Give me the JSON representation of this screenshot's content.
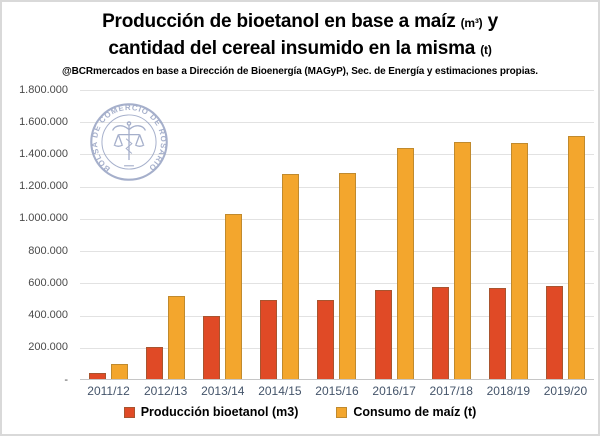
{
  "title": {
    "line1": {
      "main": "Producción de bioetanol en base a maíz ",
      "small": "(m³)",
      "tail": " y"
    },
    "line2": {
      "main": "cantidad del cereal insumido en la misma ",
      "small": "(t)"
    },
    "subtitle": "@BCRmercados en base a Dirección de Bioenergía (MAGyP), Sec. de Energía y estimaciones propias."
  },
  "watermark": {
    "ring_text": "BOLSA DE COMERCIO DE ROSARIO",
    "color": "#96a2c2"
  },
  "chart_data": {
    "type": "bar",
    "categories": [
      "2011/12",
      "2012/13",
      "2013/14",
      "2014/15",
      "2015/16",
      "2016/17",
      "2017/18",
      "2018/19",
      "2019/20"
    ],
    "series": [
      {
        "name": "Producción bioetanol (m3)",
        "id": "produccion-bioetanol",
        "color": "#e04a26",
        "border_color": "#a8542f",
        "values": [
          45000,
          205000,
          400000,
          495000,
          495000,
          560000,
          575000,
          570000,
          585000
        ]
      },
      {
        "name": "Consumo de maíz (t)",
        "id": "consumo-maiz",
        "color": "#f3a62d",
        "border_color": "#c08a2e",
        "values": [
          100000,
          520000,
          1030000,
          1280000,
          1285000,
          1440000,
          1475000,
          1470000,
          1515000
        ]
      }
    ],
    "ylim": [
      0,
      1800000
    ],
    "ytick_step": 200000,
    "yticks": [
      {
        "value": 0,
        "label": "-"
      },
      {
        "value": 200000,
        "label": "200.000"
      },
      {
        "value": 400000,
        "label": "400.000"
      },
      {
        "value": 600000,
        "label": "600.000"
      },
      {
        "value": 800000,
        "label": "800.000"
      },
      {
        "value": 1000000,
        "label": "1.000.000"
      },
      {
        "value": 1200000,
        "label": "1.200.000"
      },
      {
        "value": 1400000,
        "label": "1.400.000"
      },
      {
        "value": 1600000,
        "label": "1.600.000"
      },
      {
        "value": 1800000,
        "label": "1.800.000"
      }
    ],
    "grid": true,
    "gridline_color": "#e2e2e2",
    "axis_line_color": "#c6c6c6",
    "legend_position": "bottom"
  }
}
